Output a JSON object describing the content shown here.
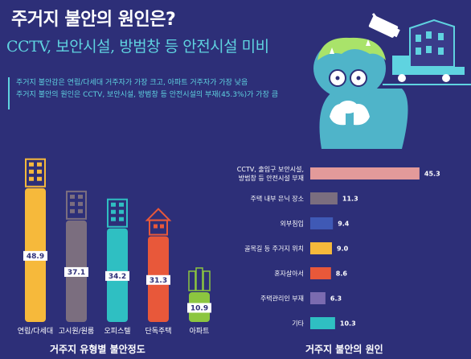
{
  "header": {
    "title": "주거지 불안의 원인은?",
    "subtitle": "CCTV, 보안시설, 방범창 등 안전시설 미비"
  },
  "summary": {
    "line1": "주거지 불안감은 연립/다세대 거주자가 가장 크고, 아파트 거주자가 가장 낮음",
    "line2": "주거지 불안의 원인은 CCTV, 보안시설, 방범창 등 안전시설의 부재(45.3%)가 가장 큼"
  },
  "colors": {
    "background": "#2d2f78",
    "accent": "#5fd3e0",
    "yellow": "#f6b93b",
    "gray": "#7b6e7f",
    "teal": "#2fbfc2",
    "orange": "#e8583a",
    "green": "#8cc63f",
    "pink": "#e39a9a",
    "blue": "#3f59b5",
    "purple": "#7b6bb0"
  },
  "chart_data": [
    {
      "type": "bar",
      "title": "거주지 유형별 불안정도",
      "categories": [
        "연립/다세대",
        "고시원/원룸",
        "오피스텔",
        "단독주택",
        "아파트"
      ],
      "values": [
        48.9,
        37.1,
        34.2,
        31.3,
        10.9
      ],
      "value_labels": [
        "48.9",
        "37.1",
        "34.2",
        "31.3",
        "10.9"
      ],
      "colors": [
        "#f6b93b",
        "#7b6e7f",
        "#2fbfc2",
        "#e8583a",
        "#8cc63f"
      ],
      "icons": [
        "building-icon",
        "building-icon",
        "building-icon",
        "house-icon",
        "apartment-icon"
      ],
      "ylim": [
        0,
        50
      ]
    },
    {
      "type": "bar",
      "orientation": "horizontal",
      "title": "거주지 불안의 원인",
      "categories": [
        [
          "CCTV, 출입구 보안시설,",
          "방범창 등 안전시설 부재"
        ],
        [
          "주택 내부 은닉 장소"
        ],
        [
          "외부침입"
        ],
        [
          "골목길 등 주거지 위치"
        ],
        [
          "혼자살아서"
        ],
        [
          "주택관리인 부재"
        ],
        [
          "기타"
        ]
      ],
      "values": [
        45.3,
        11.3,
        9.4,
        9.0,
        8.6,
        6.3,
        10.3
      ],
      "value_labels": [
        "45.3",
        "11.3",
        "9.4",
        "9.0",
        "8.6",
        "6.3",
        "10.3"
      ],
      "colors": [
        "#e39a9a",
        "#7b6e7f",
        "#3f59b5",
        "#f6b93b",
        "#e8583a",
        "#7b6bb0",
        "#2fbfc2"
      ],
      "xlim": [
        0,
        50
      ]
    }
  ]
}
